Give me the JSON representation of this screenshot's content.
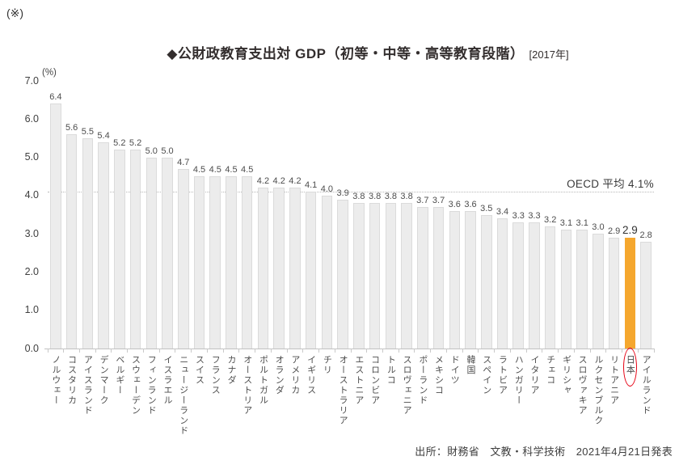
{
  "page": {
    "note_mark": "(※)",
    "title_main": "◆公財政教育支出対 GDP（初等・中等・高等教育段階）",
    "title_year": "[2017年]",
    "source": "出所：財務省　文教・科学技術　2021年4月21日発表"
  },
  "chart_data": {
    "type": "bar",
    "title": "公財政教育支出対GDP（初等・中等・高等教育段階）[2017年]",
    "unit_label": "(%)",
    "ylabel": "(%)",
    "ylim": [
      0,
      7
    ],
    "ytick_step": 1.0,
    "yticks": [
      "0.0",
      "1.0",
      "2.0",
      "3.0",
      "4.0",
      "5.0",
      "6.0",
      "7.0"
    ],
    "grid": false,
    "reference_line": {
      "label": "OECD 平均 4.1%",
      "value": 4.1
    },
    "highlight_category": "日本",
    "colors": {
      "bar_fill": "#ECECEC",
      "bar_border": "#DBDBDB",
      "highlight_fill": "#F5A72E",
      "highlight_circle": "#E60012",
      "axis": "#C2C2C2",
      "reference_dotted": "#B8B8B8"
    },
    "categories": [
      "ノルウェー",
      "コスタリカ",
      "アイスランド",
      "デンマーク",
      "ベルギー",
      "スウェーデン",
      "フィンランド",
      "イスラエル",
      "ニュージーランド",
      "スイス",
      "フランス",
      "カナダ",
      "オーストリア",
      "ポルトガル",
      "オランダ",
      "アメリカ",
      "イギリス",
      "チリ",
      "オーストラリア",
      "エストニア",
      "コロンビア",
      "トルコ",
      "スロヴェニア",
      "ポーランド",
      "メキシコ",
      "ドイツ",
      "韓国",
      "スペイン",
      "ラトビア",
      "ハンガリー",
      "イタリア",
      "チェコ",
      "ギリシャ",
      "スロヴァキア",
      "ルクセンブルク",
      "リトアニア",
      "日本",
      "アイルランド"
    ],
    "values": [
      6.4,
      5.6,
      5.5,
      5.4,
      5.2,
      5.2,
      5.0,
      5.0,
      4.7,
      4.5,
      4.5,
      4.5,
      4.5,
      4.2,
      4.2,
      4.2,
      4.1,
      4.0,
      3.9,
      3.8,
      3.8,
      3.8,
      3.8,
      3.7,
      3.7,
      3.6,
      3.6,
      3.5,
      3.4,
      3.3,
      3.3,
      3.2,
      3.1,
      3.1,
      3.0,
      2.9,
      2.9,
      2.8
    ]
  }
}
